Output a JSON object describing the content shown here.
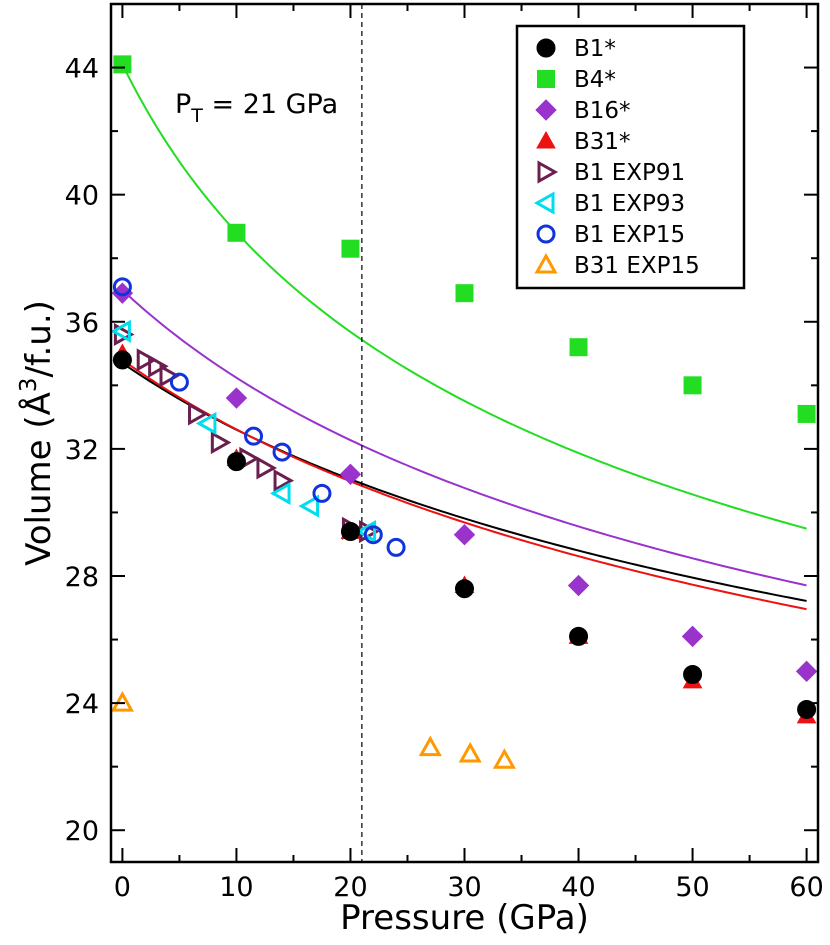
{
  "chart_data": {
    "type": "scatter",
    "xlabel": "Pressure (GPa)",
    "ylabel": "Volume (Å³/f.u.)",
    "ylabel_parts": [
      "Volume (",
      "Å",
      "3",
      "/f.u.)"
    ],
    "xlim": [
      -1,
      61
    ],
    "ylim": [
      19,
      46
    ],
    "xticks": [
      0,
      10,
      20,
      30,
      40,
      50,
      60
    ],
    "yticks": [
      20,
      24,
      28,
      32,
      36,
      40,
      44
    ],
    "grid": false,
    "legend_position": "top-right",
    "transition_pressure": 21,
    "annotation_parts": [
      "P",
      "T",
      " = 21 GPa"
    ],
    "series": [
      {
        "name": "B1*",
        "marker": "circle",
        "filled": true,
        "color": "#000000",
        "x": [
          0,
          10,
          20,
          30,
          40,
          50,
          60
        ],
        "y": [
          34.8,
          31.6,
          29.4,
          27.6,
          26.1,
          24.9,
          23.8
        ],
        "fit": {
          "V0": 34.7,
          "B0": 140,
          "Bp": 4.3
        }
      },
      {
        "name": "B4*",
        "marker": "square",
        "filled": true,
        "color": "#22dd22",
        "x": [
          0,
          10,
          20,
          30,
          40,
          50,
          60
        ],
        "y": [
          44.1,
          38.8,
          38.3,
          36.9,
          35.2,
          34.0,
          33.1
        ],
        "fit": {
          "V0": 44.1,
          "B0": 60,
          "Bp": 4.0
        }
      },
      {
        "name": "B16*",
        "marker": "diamond",
        "filled": true,
        "color": "#9933cc",
        "x": [
          0,
          10,
          20,
          30,
          40,
          50,
          60
        ],
        "y": [
          36.9,
          33.6,
          31.2,
          29.3,
          27.7,
          26.1,
          25.0
        ],
        "fit": {
          "V0": 37.0,
          "B0": 110,
          "Bp": 4.0
        }
      },
      {
        "name": "B31*",
        "marker": "triangle-up",
        "filled": true,
        "color": "#ee1111",
        "x": [
          0,
          10,
          20,
          30,
          40,
          50,
          60
        ],
        "y": [
          35.0,
          31.7,
          29.4,
          27.7,
          26.1,
          24.7,
          23.6
        ],
        "fit": {
          "V0": 34.8,
          "B0": 135,
          "Bp": 4.0
        }
      },
      {
        "name": "B1 EXP91",
        "marker": "triangle-right",
        "filled": false,
        "color": "#6b1f4f",
        "x": [
          0,
          2,
          3,
          4,
          6.5,
          8.5,
          11,
          12.5,
          14,
          20,
          21.5
        ],
        "y": [
          35.6,
          34.8,
          34.6,
          34.3,
          33.1,
          32.2,
          31.7,
          31.4,
          31.0,
          29.5,
          29.4
        ]
      },
      {
        "name": "B1 EXP93",
        "marker": "triangle-left",
        "filled": false,
        "color": "#00ddee",
        "x": [
          0,
          7.5,
          14,
          16.5,
          21.5
        ],
        "y": [
          35.7,
          32.8,
          30.6,
          30.2,
          29.4
        ]
      },
      {
        "name": "B1 EXP15",
        "marker": "circle",
        "filled": false,
        "color": "#1133dd",
        "x": [
          0,
          5,
          11.5,
          14,
          17.5,
          22,
          24
        ],
        "y": [
          37.1,
          34.1,
          32.4,
          31.9,
          30.6,
          29.3,
          28.9
        ]
      },
      {
        "name": "B31 EXP15",
        "marker": "triangle-up",
        "filled": false,
        "color": "#ff9900",
        "x": [
          0,
          27,
          30.5,
          33.5
        ],
        "y": [
          24.0,
          22.6,
          22.4,
          22.2
        ]
      }
    ]
  }
}
